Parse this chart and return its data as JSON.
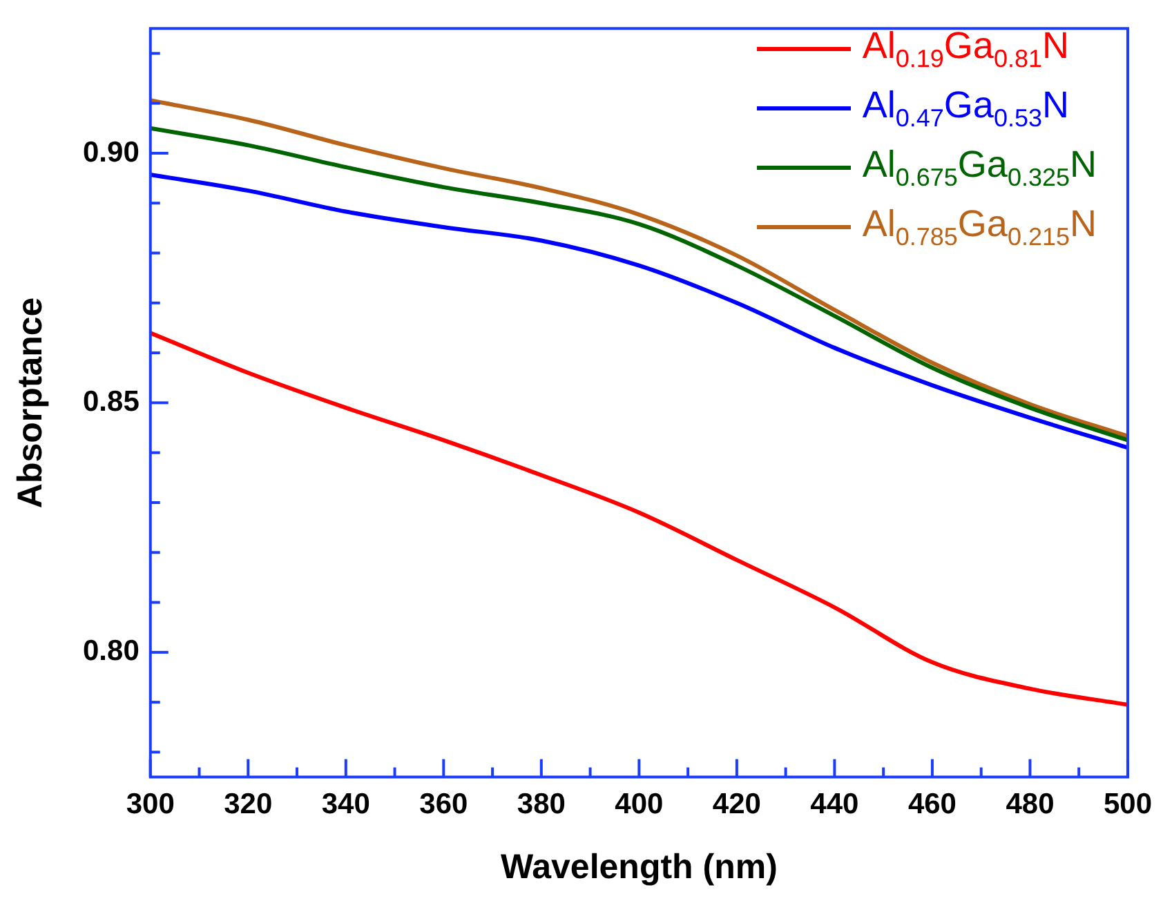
{
  "chart_data": {
    "type": "line",
    "xlabel": "Wavelength (nm)",
    "ylabel": "Absorptance",
    "x": [
      300,
      320,
      340,
      360,
      380,
      400,
      420,
      440,
      460,
      480,
      500
    ],
    "series": [
      {
        "name": "Al$_{0.19}$Ga$_{0.81}$N",
        "color": "#ff0000",
        "values": [
          0.864,
          0.856,
          0.849,
          0.8425,
          0.8355,
          0.828,
          0.8185,
          0.809,
          0.798,
          0.7927,
          0.7895
        ]
      },
      {
        "name": "Al$_{0.47}$Ga$_{0.53}$N",
        "color": "#0000ff",
        "values": [
          0.8957,
          0.8925,
          0.8883,
          0.8852,
          0.8825,
          0.8775,
          0.87,
          0.861,
          0.8535,
          0.847,
          0.841
        ]
      },
      {
        "name": "Al$_{0.675}$Ga$_{0.325}$N",
        "color": "#006400",
        "values": [
          0.905,
          0.9016,
          0.8972,
          0.8932,
          0.89,
          0.8858,
          0.8775,
          0.8674,
          0.857,
          0.849,
          0.8425
        ]
      },
      {
        "name": "Al$_{0.785}$Ga$_{0.215}$N",
        "color": "#b8651b",
        "values": [
          0.9106,
          0.9067,
          0.9016,
          0.897,
          0.893,
          0.8877,
          0.8795,
          0.8686,
          0.858,
          0.8497,
          0.8433
        ]
      }
    ],
    "xlim": [
      300,
      500
    ],
    "xticks": [
      300,
      {
        "value": 310,
        "label": null
      },
      320,
      {
        "value": 330,
        "label": null
      },
      340,
      {
        "value": 350,
        "label": null
      },
      360,
      {
        "value": 370,
        "label": null
      },
      380,
      {
        "value": 390,
        "label": null
      },
      400,
      {
        "value": 410,
        "label": null
      },
      420,
      {
        "value": 430,
        "label": null
      },
      440,
      {
        "value": 450,
        "label": null
      },
      460,
      {
        "value": 470,
        "label": null
      },
      480,
      {
        "value": 490,
        "label": null
      },
      500
    ],
    "ylim": [
      0.775,
      0.925
    ],
    "yticks": [
      {
        "value": 0.78,
        "label": null
      },
      {
        "value": 0.79,
        "label": null
      },
      {
        "value": 0.8,
        "label": "0.80"
      },
      {
        "value": 0.81,
        "label": null
      },
      {
        "value": 0.82,
        "label": null
      },
      {
        "value": 0.83,
        "label": null
      },
      {
        "value": 0.84,
        "label": null
      },
      {
        "value": 0.85,
        "label": "0.85"
      },
      {
        "value": 0.86,
        "label": null
      },
      {
        "value": 0.87,
        "label": null
      },
      {
        "value": 0.88,
        "label": null
      },
      {
        "value": 0.89,
        "label": null
      },
      {
        "value": 0.9,
        "label": "0.90"
      },
      {
        "value": 0.91,
        "label": null
      },
      {
        "value": 0.92,
        "label": null
      }
    ],
    "legend": "top right",
    "marker": "none",
    "line_style": "solid",
    "grid": false
  }
}
